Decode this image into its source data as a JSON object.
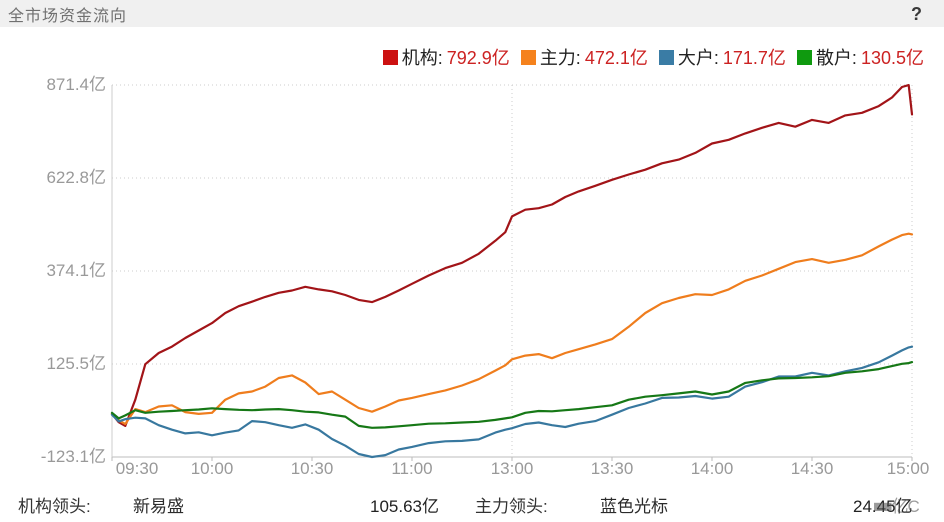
{
  "header": {
    "title": "全市场资金流向",
    "help_icon": "?"
  },
  "legend": {
    "items": [
      {
        "label": "机构:",
        "value": "792.9亿",
        "color": "#cc1111"
      },
      {
        "label": "主力:",
        "value": "472.1亿",
        "color": "#f5821d"
      },
      {
        "label": "大户:",
        "value": "171.7亿",
        "color": "#3a7ca5"
      },
      {
        "label": "散户:",
        "value": "130.5亿",
        "color": "#0f9a0f"
      }
    ]
  },
  "footer": {
    "left_label": "机构领头:",
    "left_stock": "新易盛",
    "left_value": "105.63亿",
    "right_label": "主力领头:",
    "right_stock": "蓝色光标",
    "right_value": "24.45亿",
    "watermark": "■■亿C"
  },
  "chart_data": {
    "type": "line",
    "title": "全市场资金流向",
    "x_note": "t = trading minutes since 09:30; lunch break 11:30-13:00 compressed at t=120; t=240 is 15:00",
    "ylim": [
      -123.1,
      871.4
    ],
    "grid": "dotted horizontal lines at each y tick; dotted vertical at 13:00 and right edge",
    "legend_position": "top-right",
    "y_ticks": [
      {
        "label": "871.4亿",
        "value": 871.4
      },
      {
        "label": "622.8亿",
        "value": 622.8
      },
      {
        "label": "374.1亿",
        "value": 374.1
      },
      {
        "label": "125.5亿",
        "value": 125.5
      },
      {
        "label": "-123.1亿",
        "value": -123.1
      }
    ],
    "x_ticks": [
      {
        "label": "09:30",
        "t": 0
      },
      {
        "label": "10:00",
        "t": 30
      },
      {
        "label": "10:30",
        "t": 60
      },
      {
        "label": "11:00",
        "t": 90
      },
      {
        "label": "13:00",
        "t": 120
      },
      {
        "label": "13:30",
        "t": 150
      },
      {
        "label": "14:00",
        "t": 180
      },
      {
        "label": "14:30",
        "t": 210
      },
      {
        "label": "15:00",
        "t": 240
      }
    ],
    "t": [
      0,
      2,
      4,
      7,
      10,
      14,
      18,
      22,
      26,
      30,
      34,
      38,
      42,
      46,
      50,
      54,
      58,
      62,
      66,
      70,
      74,
      78,
      82,
      86,
      90,
      95,
      100,
      105,
      110,
      115,
      118,
      120,
      124,
      128,
      132,
      136,
      140,
      145,
      150,
      155,
      160,
      165,
      170,
      175,
      180,
      185,
      190,
      195,
      200,
      205,
      210,
      215,
      220,
      225,
      230,
      234,
      237,
      239,
      240
    ],
    "series": [
      {
        "name": "机构",
        "final": 792.9,
        "color": "#a21418",
        "values": [
          -8,
          -30,
          -40,
          30,
          125,
          155,
          172,
          195,
          215,
          235,
          262,
          280,
          292,
          305,
          316,
          322,
          332,
          325,
          320,
          310,
          297,
          291,
          305,
          322,
          340,
          362,
          382,
          396,
          420,
          455,
          478,
          520,
          538,
          542,
          552,
          572,
          587,
          602,
          618,
          632,
          645,
          662,
          672,
          690,
          715,
          725,
          742,
          757,
          770,
          760,
          778,
          770,
          790,
          797,
          815,
          838,
          866,
          871,
          792.9
        ]
      },
      {
        "name": "主力",
        "final": 472.1,
        "color": "#ef7d1d",
        "values": [
          -8,
          -25,
          -35,
          5,
          -3,
          12,
          15,
          -3,
          -8,
          -5,
          30,
          47,
          52,
          65,
          88,
          95,
          76,
          45,
          52,
          30,
          8,
          -2,
          12,
          28,
          35,
          45,
          55,
          68,
          85,
          108,
          122,
          138,
          148,
          152,
          141,
          155,
          165,
          178,
          192,
          225,
          262,
          288,
          302,
          312,
          310,
          325,
          348,
          362,
          380,
          398,
          406,
          396,
          404,
          416,
          440,
          458,
          470,
          474,
          472.1
        ]
      },
      {
        "name": "大户",
        "final": 171.7,
        "color": "#38789f",
        "values": [
          -10,
          -28,
          -22,
          -18,
          -20,
          -38,
          -50,
          -60,
          -57,
          -65,
          -58,
          -52,
          -27,
          -30,
          -38,
          -45,
          -36,
          -50,
          -75,
          -93,
          -115,
          -123,
          -118,
          -103,
          -96,
          -86,
          -81,
          -80,
          -76,
          -58,
          -50,
          -46,
          -35,
          -31,
          -38,
          -43,
          -34,
          -27,
          -10,
          8,
          20,
          35,
          36,
          40,
          33,
          38,
          65,
          77,
          92,
          92,
          102,
          95,
          106,
          115,
          130,
          148,
          162,
          170,
          171.7
        ]
      },
      {
        "name": "散户",
        "final": 130.5,
        "color": "#167816",
        "values": [
          -5,
          -20,
          -12,
          2,
          -5,
          -2,
          0,
          2,
          4,
          7,
          5,
          3,
          2,
          4,
          5,
          2,
          -2,
          -4,
          -10,
          -15,
          -40,
          -45,
          -44,
          -41,
          -38,
          -34,
          -33,
          -31,
          -29,
          -24,
          -20,
          -17,
          -5,
          0,
          -1,
          2,
          5,
          10,
          15,
          30,
          38,
          42,
          47,
          52,
          44,
          52,
          75,
          82,
          87,
          88,
          90,
          93,
          102,
          106,
          112,
          120,
          126,
          128,
          130.5
        ]
      }
    ]
  }
}
